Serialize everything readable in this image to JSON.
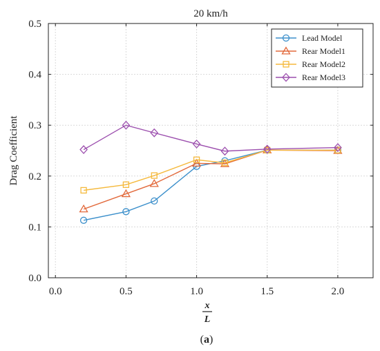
{
  "chart_data": {
    "type": "line",
    "title": "20 km/h",
    "xlabel_num": "x",
    "xlabel_den": "L",
    "ylabel": "Drag Coefficient",
    "caption_prefix": "(",
    "caption_letter": "a",
    "caption_suffix": ")",
    "xlim": [
      -0.05,
      2.25
    ],
    "ylim": [
      0.0,
      0.5
    ],
    "xticks": [
      0.0,
      0.5,
      1.0,
      1.5,
      2.0
    ],
    "xtick_labels": [
      "0.0",
      "0.5",
      "1.0",
      "1.5",
      "2.0"
    ],
    "yticks": [
      0.0,
      0.1,
      0.2,
      0.3,
      0.4,
      0.5
    ],
    "ytick_labels": [
      "0.0",
      "0.1",
      "0.2",
      "0.3",
      "0.4",
      "0.5"
    ],
    "grid": true,
    "legend_position": "top-right",
    "x": [
      0.2,
      0.5,
      0.7,
      1.0,
      1.2,
      1.5,
      2.0
    ],
    "series": [
      {
        "name": "Lead Model",
        "color": "#3b8fcb",
        "marker": "circle",
        "values": [
          0.113,
          0.13,
          0.151,
          0.219,
          0.23,
          0.251,
          0.251
        ]
      },
      {
        "name": "Rear Model1",
        "color": "#e2693b",
        "marker": "triangle",
        "values": [
          0.135,
          0.165,
          0.185,
          0.225,
          0.224,
          0.251,
          0.25
        ]
      },
      {
        "name": "Rear Model2",
        "color": "#f5b93c",
        "marker": "square",
        "values": [
          0.172,
          0.183,
          0.201,
          0.232,
          0.226,
          0.251,
          0.251
        ]
      },
      {
        "name": "Rear Model3",
        "color": "#9c4fae",
        "marker": "diamond",
        "values": [
          0.252,
          0.3,
          0.285,
          0.263,
          0.249,
          0.253,
          0.256
        ]
      }
    ]
  }
}
